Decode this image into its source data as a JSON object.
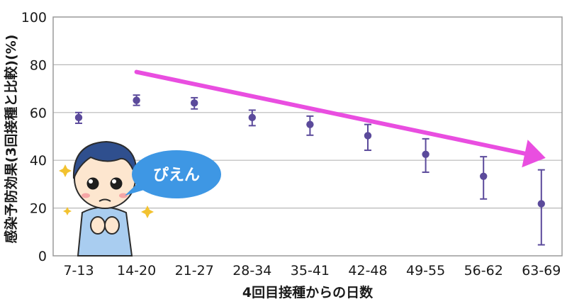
{
  "chart_data": {
    "type": "scatter",
    "xlabel": "4回目接種からの日数",
    "ylabel": "感染予防効果(3回接種と比較)(%)",
    "categories": [
      "7-13",
      "14-20",
      "21-27",
      "28-34",
      "35-41",
      "42-48",
      "49-55",
      "56-62",
      "63-69"
    ],
    "values": [
      57.9,
      65.1,
      64.0,
      57.9,
      55.0,
      50.3,
      42.5,
      33.3,
      21.8
    ],
    "lower": [
      55.5,
      63.0,
      61.5,
      54.5,
      50.5,
      44.2,
      35.0,
      23.8,
      4.6
    ],
    "upper": [
      60.0,
      67.3,
      66.2,
      61.0,
      58.5,
      55.0,
      49.0,
      41.5,
      36.0
    ],
    "ylim": [
      0,
      100
    ],
    "yticks": [
      0,
      20,
      40,
      60,
      80,
      100
    ],
    "grid": true,
    "trend_arrow": {
      "from_category": "14-20",
      "from_y": 77,
      "to_category": "63-69",
      "to_y": 41
    },
    "colors": {
      "marker": "#5b4a9b",
      "arrow": "#e94ee0",
      "grid": "#b8b8b8",
      "bubble": "#3e97e4"
    }
  },
  "illustration": {
    "speech_bubble": "ぴえん"
  }
}
